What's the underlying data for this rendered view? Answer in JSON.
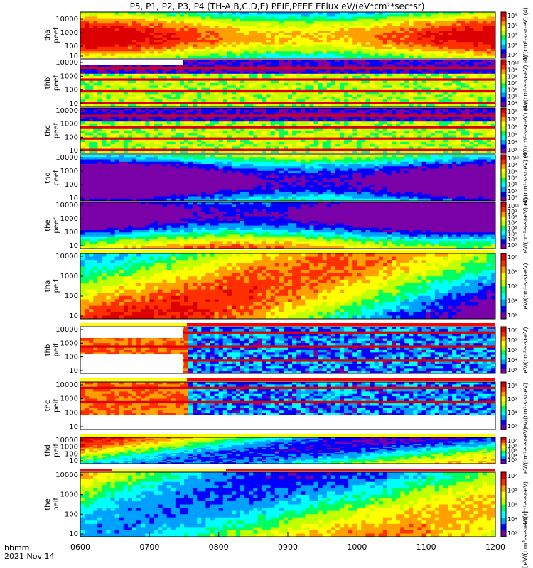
{
  "title": "P5, P1, P2, P3, P4 (TH-A,B,C,D,E) PEIF,PEEF EFlux eV/(eV*cm²*sec*sr)",
  "footer": {
    "label": "hhmm",
    "date": "2021 Nov 14"
  },
  "colors": {
    "palette": [
      "#7a00a8",
      "#0000ff",
      "#00a0ff",
      "#00ffff",
      "#00ff60",
      "#c0ff00",
      "#ffff00",
      "#ffa000",
      "#ff3000",
      "#dd0000"
    ]
  },
  "chart_data": {
    "type": "heatmap",
    "x_ticks": [
      "0600",
      "0700",
      "0800",
      "0900",
      "1000",
      "1100",
      "1200"
    ],
    "x_range": [
      "0600",
      "1200"
    ],
    "y_scale": "log",
    "y_ticks": [
      "10000",
      "1000",
      "100",
      "10"
    ],
    "panels": [
      {
        "label1": "tha",
        "label2": "peef",
        "y_ticks": [
          "10000",
          "1000",
          "100",
          "10"
        ],
        "cbar_ticks": [
          "10⁶",
          "10⁵",
          "10⁴",
          "10³",
          "10²"
        ],
        "cbar_label": "eV/(cm²-s-sr-eV) (4)",
        "bar": "none"
      },
      {
        "label1": "thb",
        "label2": "peef",
        "y_ticks": [
          "10000",
          "1000",
          "100",
          "10"
        ],
        "cbar_ticks": [
          "10¹⁰",
          "10⁹",
          "10⁸",
          "10⁷",
          "10⁶",
          "10⁵",
          "10⁴"
        ],
        "cbar_label": "eV/(cm²-s-sr-eV) (4)",
        "bar": "none"
      },
      {
        "label1": "thc",
        "label2": "peef",
        "y_ticks": [
          "10000",
          "1000",
          "100",
          "10"
        ],
        "cbar_ticks": [
          "10⁸",
          "10⁷",
          "10⁶",
          "10⁵",
          "10⁴",
          "10³"
        ],
        "cbar_label": "eV/(cm²-s-sr-eV) (4)",
        "bar": "none"
      },
      {
        "label1": "thd",
        "label2": "peef",
        "y_ticks": [
          "10000",
          "1000",
          "100",
          "10"
        ],
        "cbar_ticks": [
          "10¹⁰",
          "10⁹",
          "10⁸",
          "10⁷",
          "10⁶",
          "10⁵",
          "10⁴"
        ],
        "cbar_label": "eV/(cm²-s-sr-eV) (4)",
        "bar": "none"
      },
      {
        "label1": "the",
        "label2": "peef",
        "y_ticks": [
          "10000",
          "1000",
          "100",
          "10"
        ],
        "cbar_ticks": [
          "10¹⁰",
          "10⁹",
          "10⁸",
          "10⁷",
          "10⁶",
          "10⁵",
          "10⁴",
          "10³"
        ],
        "cbar_label": "eV/(cm²-s-sr-eV) (4)",
        "bar": "none"
      },
      {
        "label1": "tha",
        "label2": "peif",
        "y_ticks": [
          "10000",
          "1000",
          "100",
          "10"
        ],
        "cbar_ticks": [
          "10⁷",
          "10⁶",
          "10⁵",
          "10⁴",
          "10³"
        ],
        "cbar_label": "eV/(cm²-s-sr-eV)",
        "bar": "yellow"
      },
      {
        "label1": "thb",
        "label2": "peif",
        "y_ticks": [
          "10000",
          "1000",
          "100",
          "10"
        ],
        "cbar_ticks": [
          "10⁷",
          "10⁶",
          "10⁵",
          "10⁴",
          "10³"
        ],
        "cbar_label": "eV/(cm²-s-sr-eV)",
        "bar": "split"
      },
      {
        "label1": "thc",
        "label2": "peif",
        "y_ticks": [
          "10000",
          "1000",
          "100",
          "10"
        ],
        "cbar_ticks": [
          "10⁶",
          "10⁵",
          "10⁴",
          "10³"
        ],
        "cbar_label": "eV/(cm²-s-sr-eV)",
        "bar": "split"
      },
      {
        "label1": "thd",
        "label2": "peif",
        "y_ticks": [
          "10000",
          "1000",
          "100",
          "10"
        ],
        "cbar_ticks": [
          "10⁷",
          "10⁶",
          "10⁵",
          "10⁴",
          "10³"
        ],
        "cbar_label": "eV/(cm²-s-sr-eV)",
        "bar": "yellow"
      },
      {
        "label1": "the",
        "label2": "peif",
        "y_ticks": [
          "10000",
          "1000",
          "100",
          "10"
        ],
        "cbar_ticks": [
          "10⁷",
          "10⁶",
          "10⁵",
          "10⁴",
          "10³"
        ],
        "cbar_label": "eV/(cm²-s-sr-eV)",
        "bar": "mixed"
      }
    ],
    "bottom_label": "[eV/(cm²-s-sr-eV)]"
  }
}
